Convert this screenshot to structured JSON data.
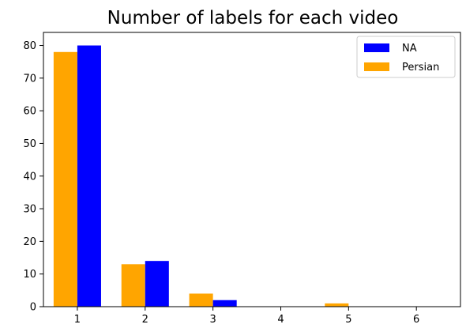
{
  "chart_data": {
    "type": "bar",
    "title": "Number of labels for each video",
    "xlabel": "",
    "ylabel": "",
    "x": [
      1,
      2,
      3,
      4,
      5,
      6
    ],
    "ylim": [
      0,
      84
    ],
    "y_ticks": [
      0,
      10,
      20,
      30,
      40,
      50,
      60,
      70,
      80
    ],
    "x_ticks": [
      1,
      2,
      3,
      4,
      5,
      6
    ],
    "grid": false,
    "legend_position": "top-right",
    "series": [
      {
        "name": "Persian",
        "color": "#FFA500",
        "values": [
          78,
          13,
          4,
          0,
          1,
          0
        ]
      },
      {
        "name": "NA",
        "color": "#0000FF",
        "values": [
          80,
          14,
          2,
          0,
          0,
          0
        ]
      }
    ],
    "legend_order": [
      "NA",
      "Persian"
    ]
  }
}
